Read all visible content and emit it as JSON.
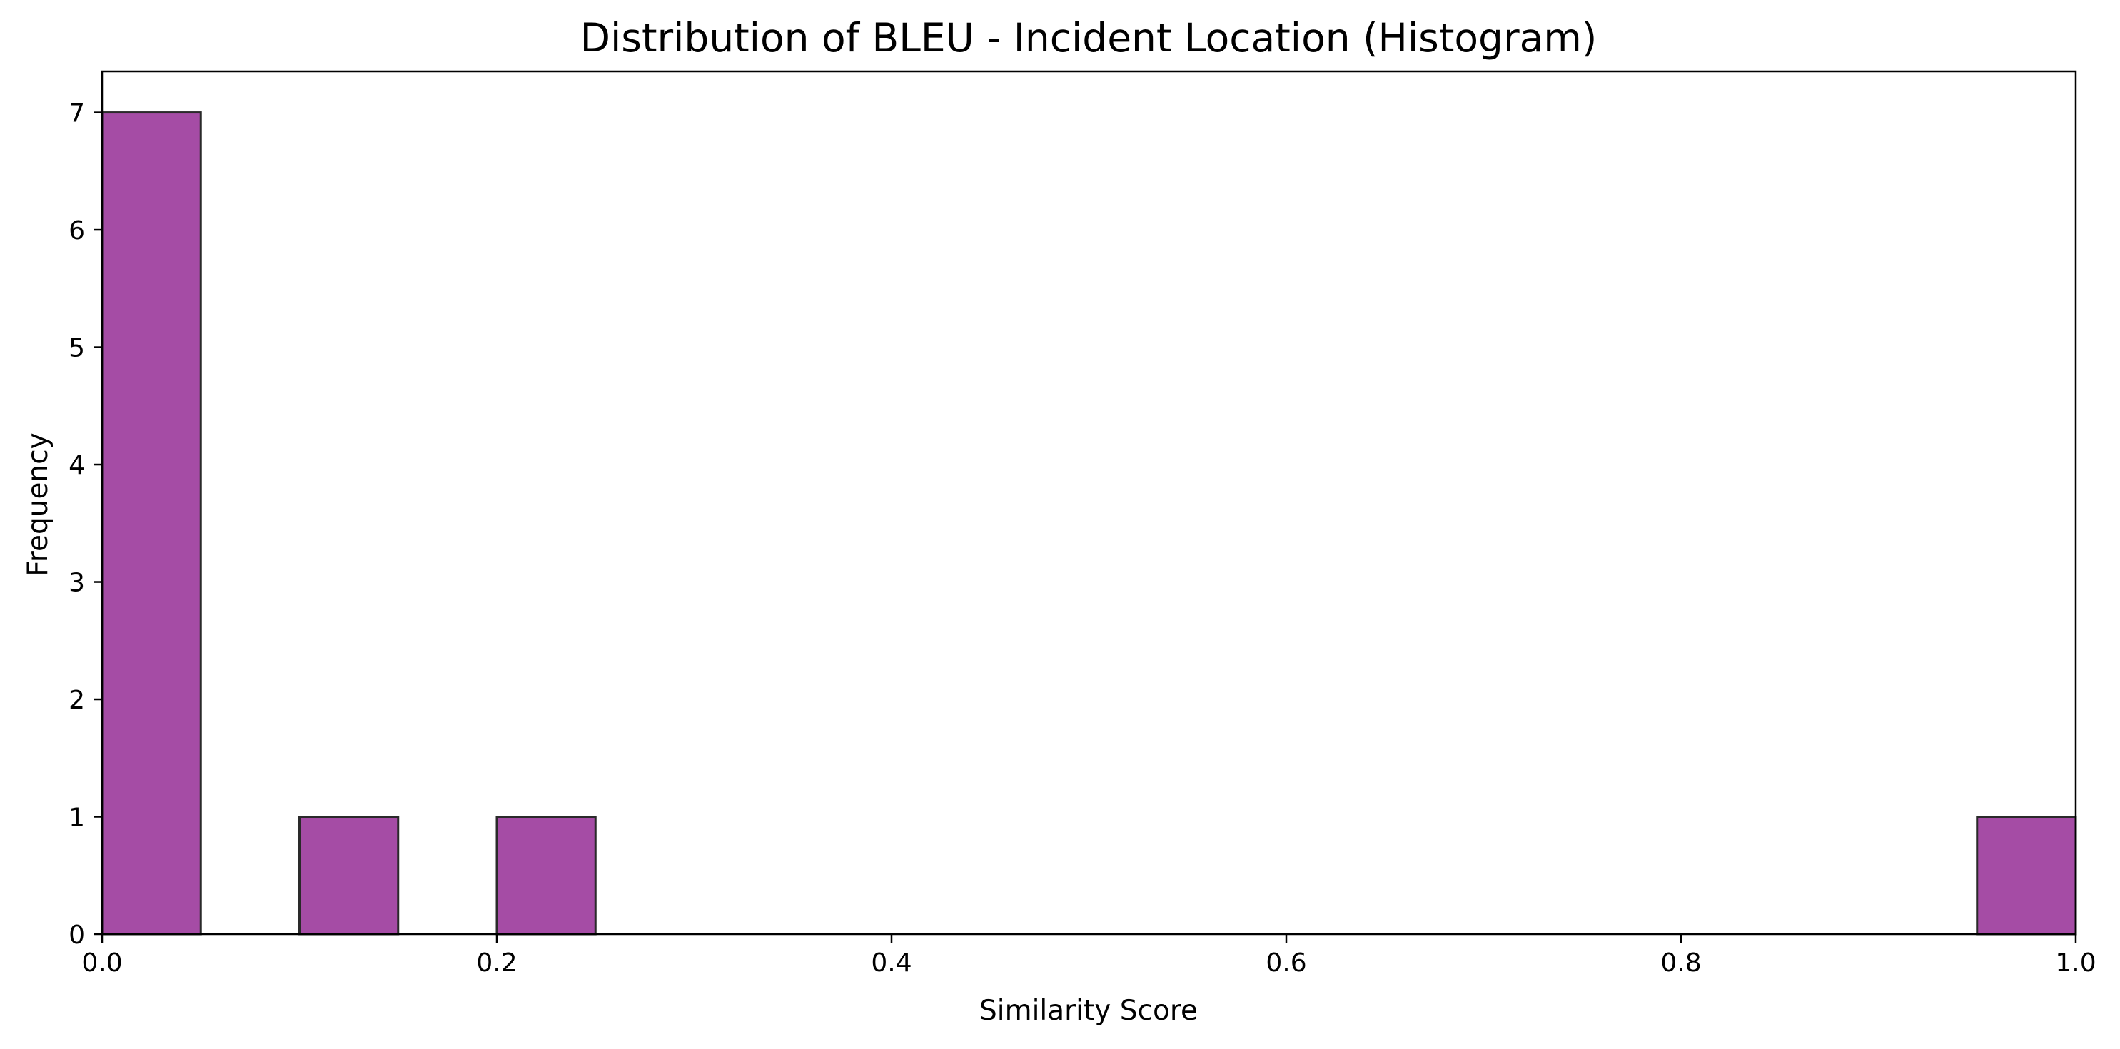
{
  "chart_data": {
    "type": "histogram",
    "title": "Distribution of BLEU - Incident Location (Histogram)",
    "xlabel": "Similarity Score",
    "ylabel": "Frequency",
    "xlim": [
      0.0,
      1.0
    ],
    "ylim": [
      0,
      7.35
    ],
    "bin_width": 0.05,
    "bins": [
      {
        "x0": 0.0,
        "x1": 0.05,
        "count": 7
      },
      {
        "x0": 0.1,
        "x1": 0.15,
        "count": 1
      },
      {
        "x0": 0.2,
        "x1": 0.25,
        "count": 1
      },
      {
        "x0": 0.95,
        "x1": 1.0,
        "count": 1
      }
    ],
    "x_ticks": [
      0.0,
      0.2,
      0.4,
      0.6,
      0.8,
      1.0
    ],
    "x_tick_labels": [
      "0.0",
      "0.2",
      "0.4",
      "0.6",
      "0.8",
      "1.0"
    ],
    "y_ticks": [
      0,
      1,
      2,
      3,
      4,
      5,
      6,
      7
    ],
    "y_tick_labels": [
      "0",
      "1",
      "2",
      "3",
      "4",
      "5",
      "6",
      "7"
    ],
    "bar_color": "#a54ca5",
    "bar_edge_color": "#2a2a2a",
    "grid": false,
    "legend": "none"
  }
}
